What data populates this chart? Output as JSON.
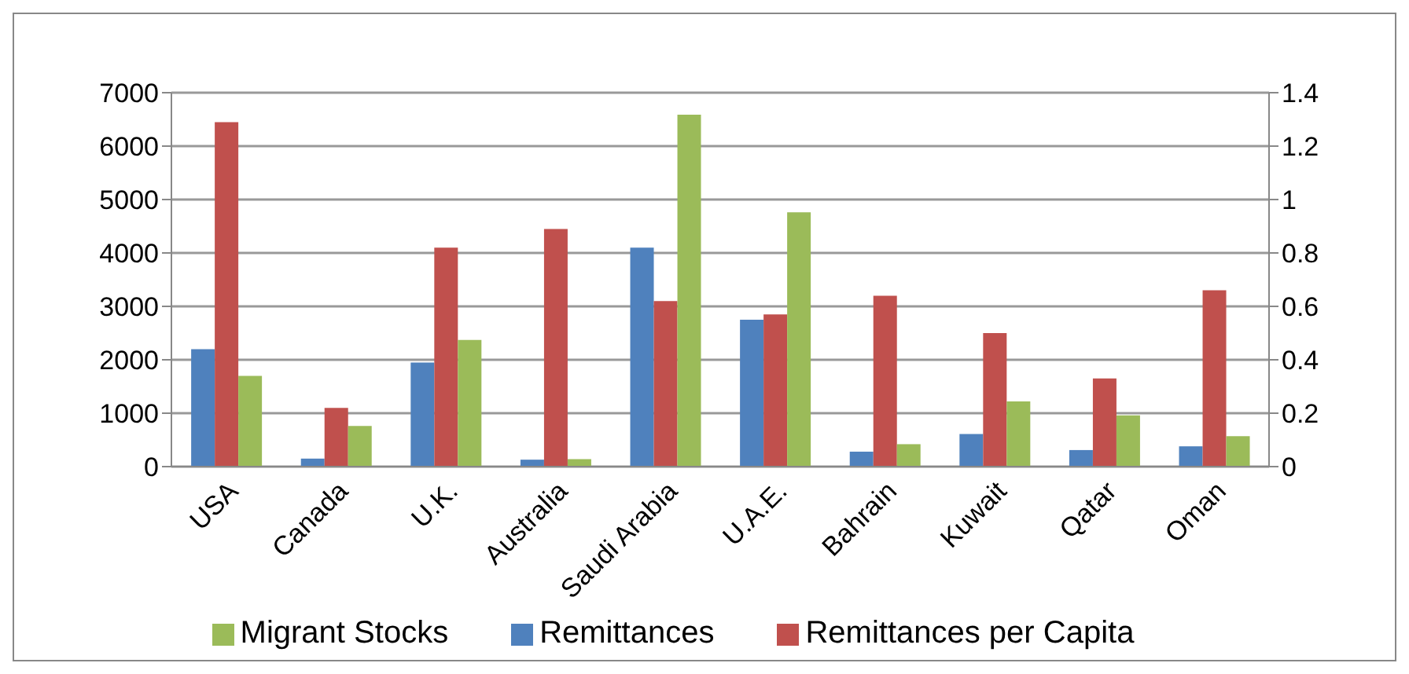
{
  "chart_data": {
    "type": "bar",
    "categories": [
      "USA",
      "Canada",
      "U.K.",
      "Australia",
      "Saudi Arabia",
      "U.A.E.",
      "Bahrain",
      "Kuwait",
      "Qatar",
      "Oman"
    ],
    "series": [
      {
        "name": "Remittances",
        "color": "#4f81bd",
        "values": [
          2200,
          150,
          1950,
          130,
          4100,
          2750,
          280,
          610,
          310,
          380
        ]
      },
      {
        "name": "Remittances per Capita",
        "color": "#c0504d",
        "axis": "y2",
        "values": [
          1.29,
          0.22,
          0.82,
          0.89,
          0.62,
          0.57,
          0.64,
          0.5,
          0.33,
          0.66
        ]
      },
      {
        "name": "Migrant Stocks",
        "color": "#9bbb59",
        "values": [
          1700,
          760,
          2370,
          140,
          6590,
          4760,
          420,
          1220,
          960,
          570
        ]
      }
    ],
    "ylim": [
      0,
      7000
    ],
    "yticks": [
      0,
      1000,
      2000,
      3000,
      4000,
      5000,
      6000,
      7000
    ],
    "y2lim": [
      0,
      1.4
    ],
    "y2ticks": [
      0,
      0.2,
      0.4,
      0.6,
      0.8,
      1,
      1.2,
      1.4
    ],
    "grid": "y",
    "legend": "bottom"
  }
}
